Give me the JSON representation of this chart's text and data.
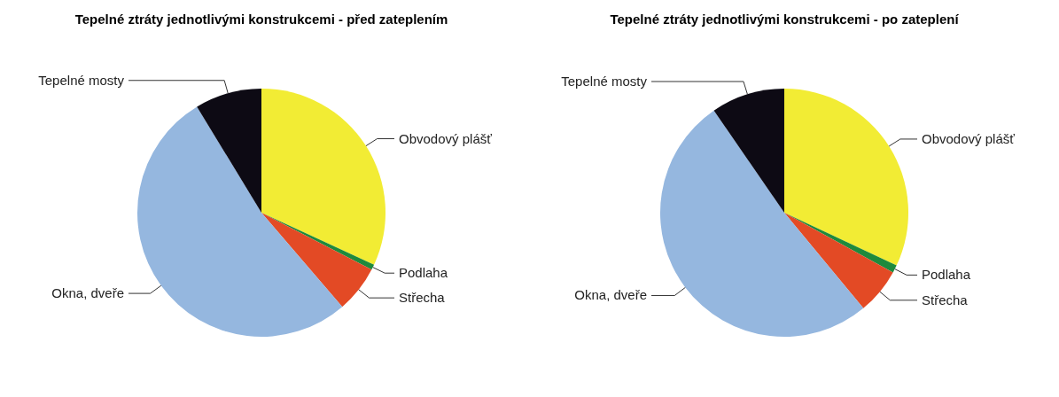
{
  "chart_data": [
    {
      "type": "pie",
      "title": "Tepelné ztráty jednotlivými konstrukcemi - před zateplením",
      "categories": [
        "Obvodový plášť",
        "Podlaha",
        "Střecha",
        "Okna, dveře",
        "Tepelné mosty"
      ],
      "values": [
        31.9,
        0.7,
        6.1,
        52.6,
        8.7
      ],
      "colors": [
        "#f2ec34",
        "#1e8a3c",
        "#e34a25",
        "#95b7df",
        "#0d0a14"
      ]
    },
    {
      "type": "pie",
      "title": "Tepelné ztráty jednotlivými konstrukcemi - po zateplení",
      "categories": [
        "Obvodový plášť",
        "Podlaha",
        "Střecha",
        "Okna, dveře",
        "Tepelné mosty"
      ],
      "values": [
        32.0,
        1.0,
        6.0,
        51.4,
        9.6
      ],
      "colors": [
        "#f2ec34",
        "#1e8a3c",
        "#e34a25",
        "#95b7df",
        "#0d0a14"
      ]
    }
  ]
}
